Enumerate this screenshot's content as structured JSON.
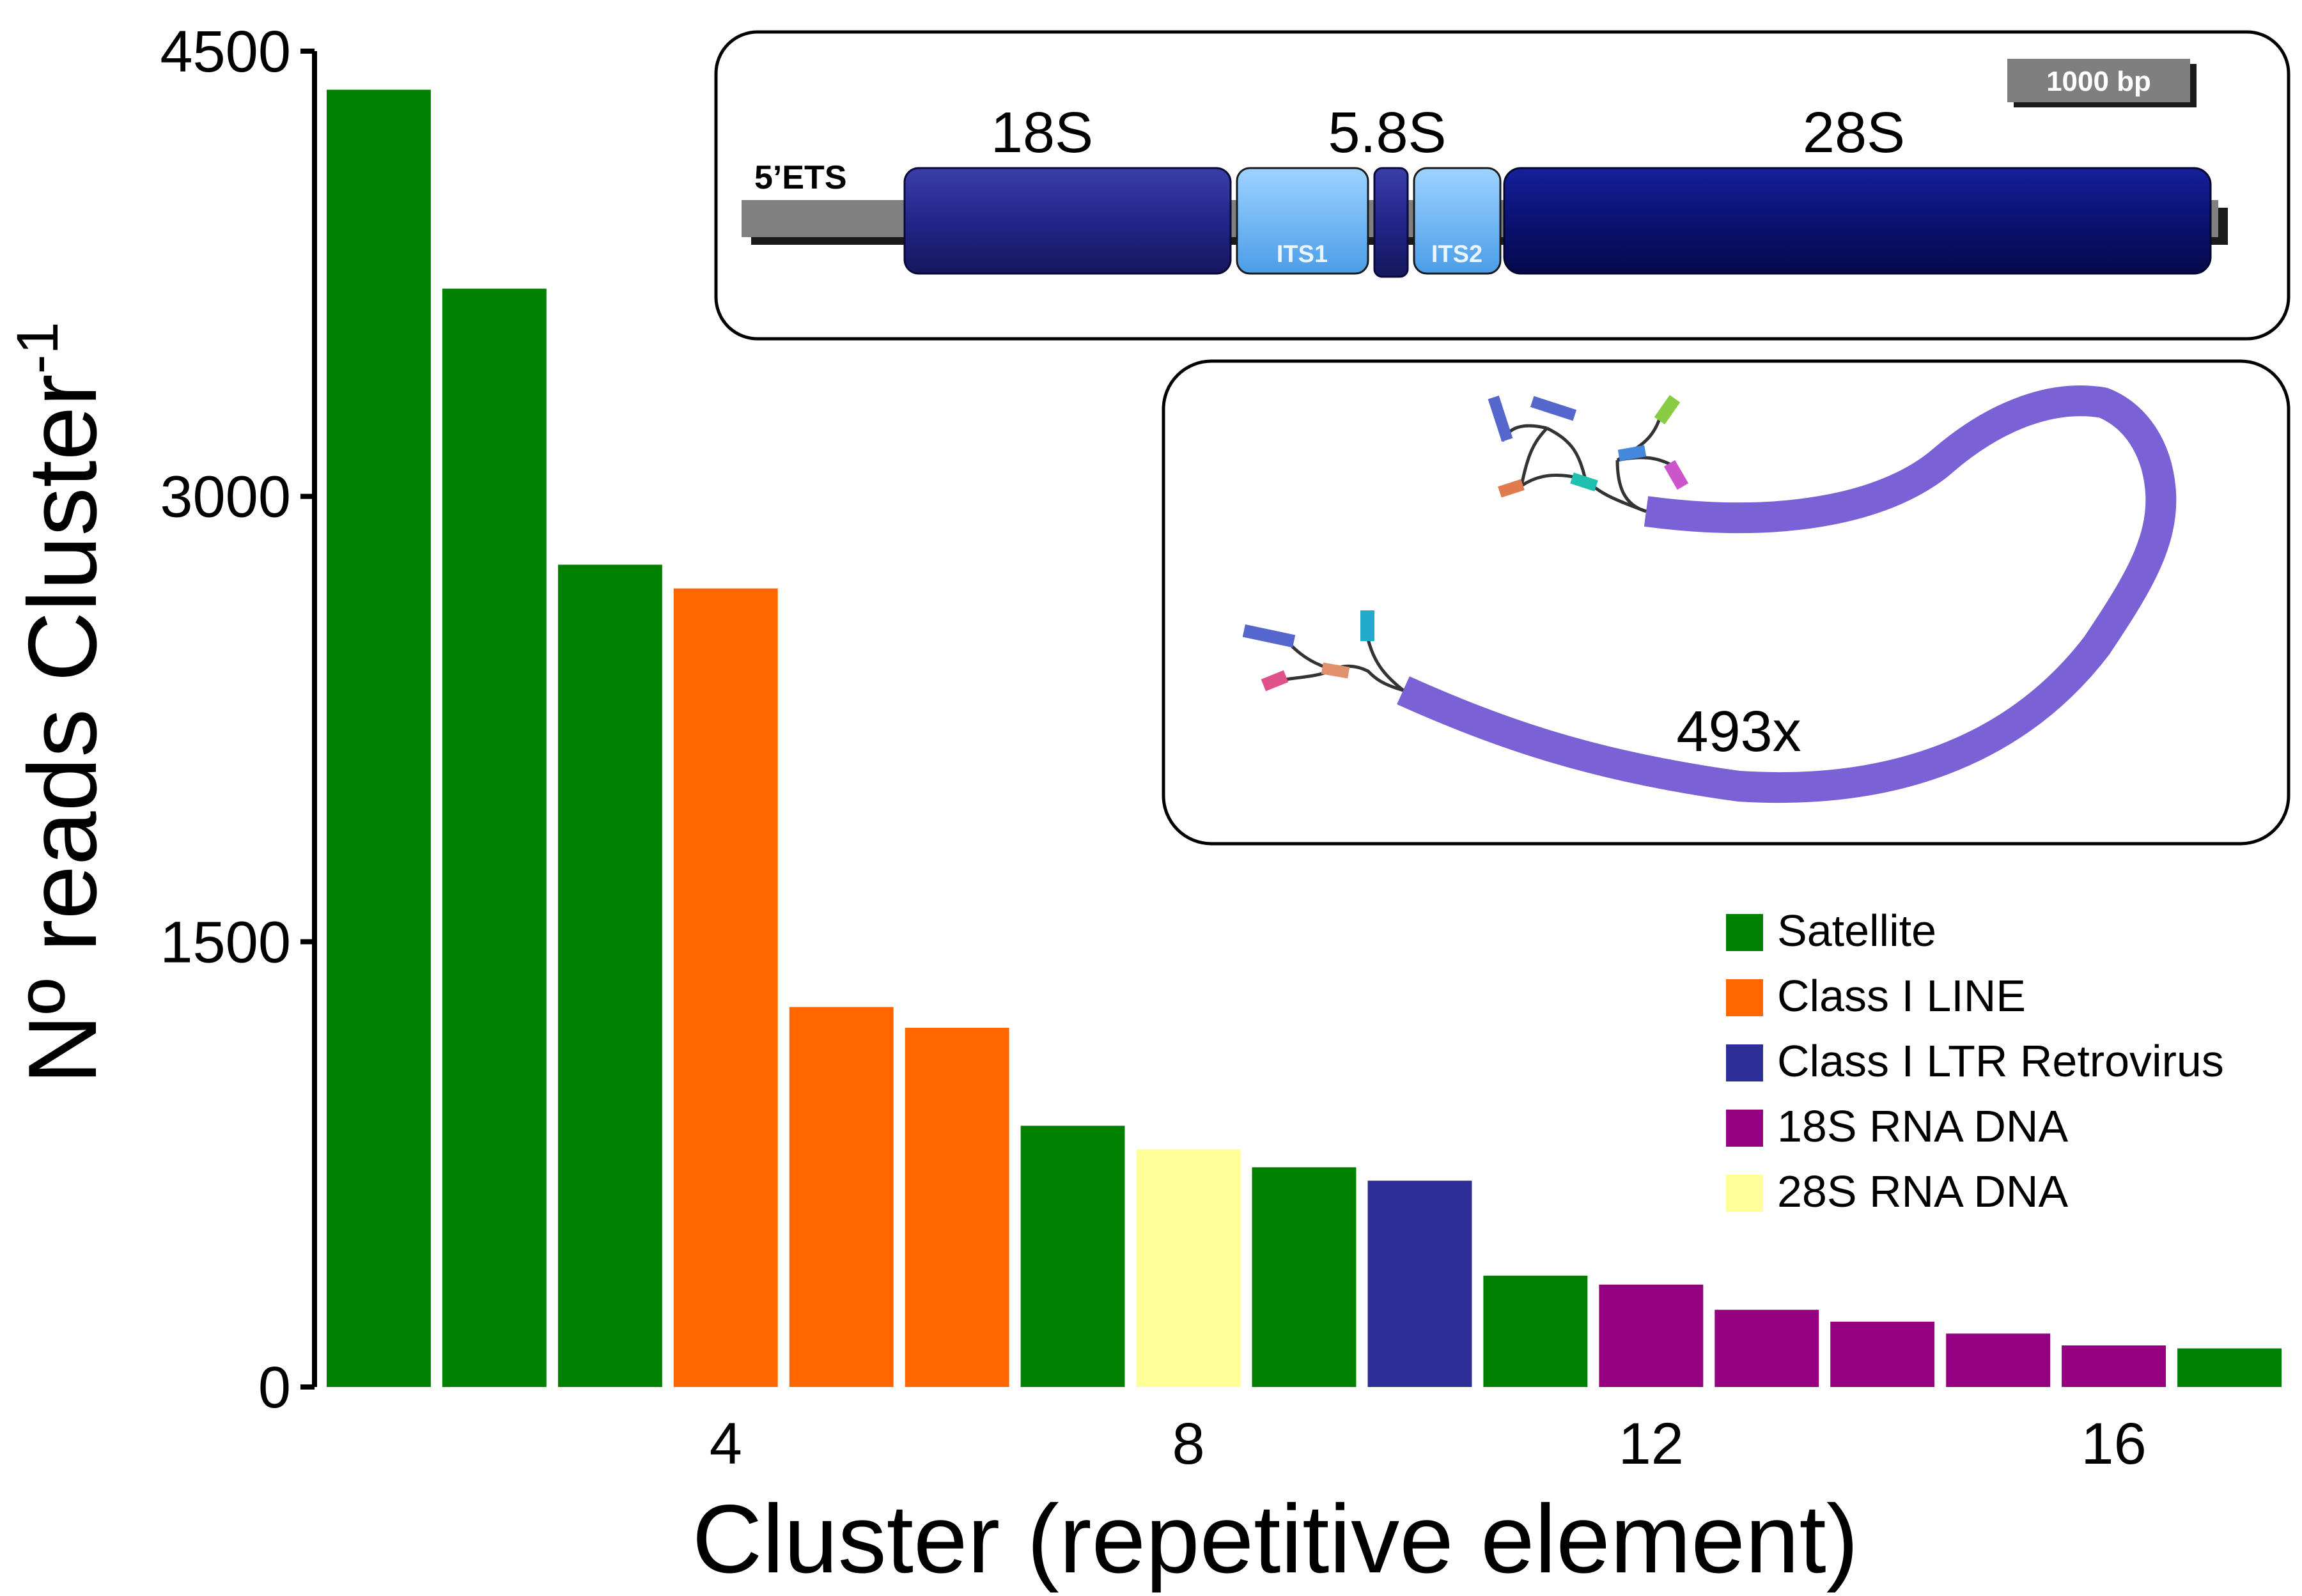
{
  "chart_data": {
    "type": "bar",
    "title": "",
    "xlabel": "Cluster (repetitive element)",
    "ylabel_main": "Nº reads Cluster",
    "ylabel_sup": "-1",
    "ylim": [
      0,
      4500
    ],
    "yticks": [
      "0",
      "1500",
      "3000",
      "4500"
    ],
    "ytick_values": [
      0,
      1500,
      3000,
      4500
    ],
    "xticks": [
      "4",
      "8",
      "12",
      "16"
    ],
    "xtick_positions": [
      4,
      8,
      12,
      16
    ],
    "categories": [
      1,
      2,
      3,
      4,
      5,
      6,
      7,
      8,
      9,
      10,
      11,
      12,
      13,
      14,
      15,
      16,
      17
    ],
    "values": [
      4370,
      3700,
      2770,
      2690,
      1280,
      1210,
      880,
      800,
      740,
      695,
      375,
      345,
      260,
      220,
      180,
      140,
      130
    ],
    "classes": [
      "Satellite",
      "Satellite",
      "Satellite",
      "Class I LINE",
      "Class I LINE",
      "Class I LINE",
      "Satellite",
      "28S RNA DNA",
      "Satellite",
      "Class I LTR Retrovirus",
      "Satellite",
      "18S RNA DNA",
      "18S RNA DNA",
      "18S RNA DNA",
      "18S RNA DNA",
      "18S RNA DNA",
      "Satellite"
    ],
    "legend": [
      {
        "label": "Satellite",
        "color": "#008000"
      },
      {
        "label": "Class I LINE",
        "color": "#ff6600"
      },
      {
        "label": "Class I LTR Retrovirus",
        "color": "#2e2e99"
      },
      {
        "label": "18S RNA DNA",
        "color": "#940080"
      },
      {
        "label": "28S RNA DNA",
        "color": "#ffff99"
      }
    ],
    "legend_position": "right"
  },
  "inset_rdna": {
    "ets_label": "5’ETS",
    "label_18s": "18S",
    "label_58s": "5.8S",
    "label_28s": "28S",
    "its1_label": "ITS1",
    "its2_label": "ITS2",
    "scale_label": "1000 bp"
  },
  "inset_graph": {
    "coverage_label": "493x",
    "line_color": "#7b61d6"
  }
}
